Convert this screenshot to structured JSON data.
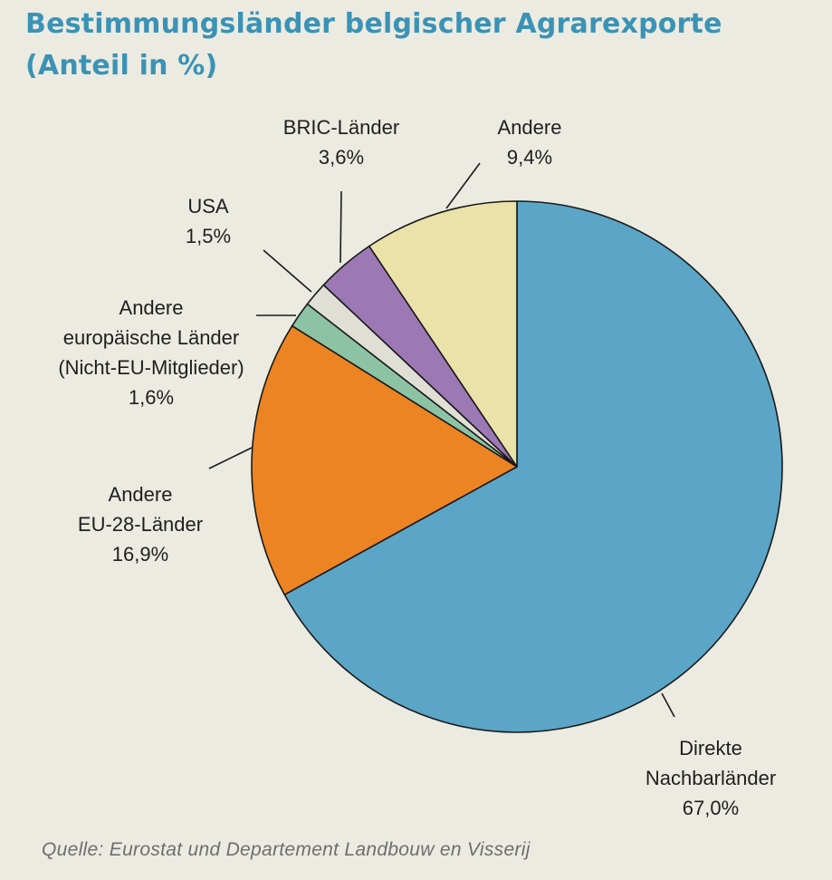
{
  "chart_data": {
    "type": "pie",
    "title_lines": [
      "Bestimmungsländer belgischer Agrarexporte",
      "(Anteil in %)"
    ],
    "slices": [
      {
        "label_lines": [
          "Direkte",
          "Nachbarländer"
        ],
        "value_text": "67,0%",
        "value": 67.0,
        "color": "#5ba5c7"
      },
      {
        "label_lines": [
          "Andere",
          "EU-28-Länder"
        ],
        "value_text": "16,9%",
        "value": 16.9,
        "color": "#ec8424"
      },
      {
        "label_lines": [
          "Andere",
          "europäische Länder",
          "(Nicht-EU-Mitglieder)"
        ],
        "value_text": "1,6%",
        "value": 1.6,
        "color": "#8cc3a4"
      },
      {
        "label_lines": [
          "USA"
        ],
        "value_text": "1,5%",
        "value": 1.5,
        "color": "#e0dfd6"
      },
      {
        "label_lines": [
          "BRIC-Länder"
        ],
        "value_text": "3,6%",
        "value": 3.6,
        "color": "#9c79b5"
      },
      {
        "label_lines": [
          "Andere"
        ],
        "value_text": "9,4%",
        "value": 9.4,
        "color": "#ebe2aa"
      }
    ],
    "start_angle_deg": 0,
    "direction": "clockwise",
    "legend": "none"
  },
  "source": "Quelle: Eurostat und Departement Landbouw en Visserij"
}
